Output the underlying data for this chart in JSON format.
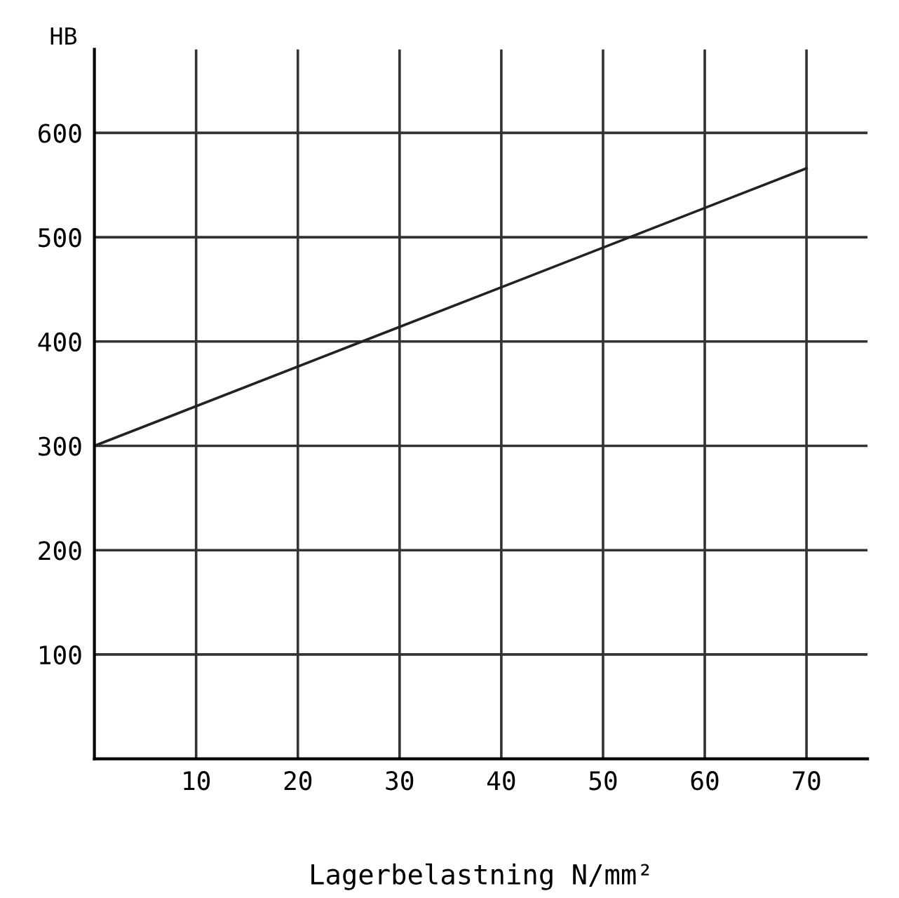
{
  "chart_data": {
    "type": "line",
    "xlabel": "Lagerbelastning N/mm²",
    "ylabel": "HB",
    "x": [
      0,
      70
    ],
    "series": [
      {
        "color": "#222222",
        "values": [
          300,
          566
        ]
      }
    ],
    "xlim": [
      0,
      76
    ],
    "ylim": [
      0,
      680
    ],
    "xticks": [
      10,
      20,
      30,
      40,
      50,
      60,
      70
    ],
    "yticks": [
      100,
      200,
      300,
      400,
      500,
      600
    ],
    "grid": true,
    "legend": false,
    "marker": "none",
    "line_style": "solid"
  }
}
